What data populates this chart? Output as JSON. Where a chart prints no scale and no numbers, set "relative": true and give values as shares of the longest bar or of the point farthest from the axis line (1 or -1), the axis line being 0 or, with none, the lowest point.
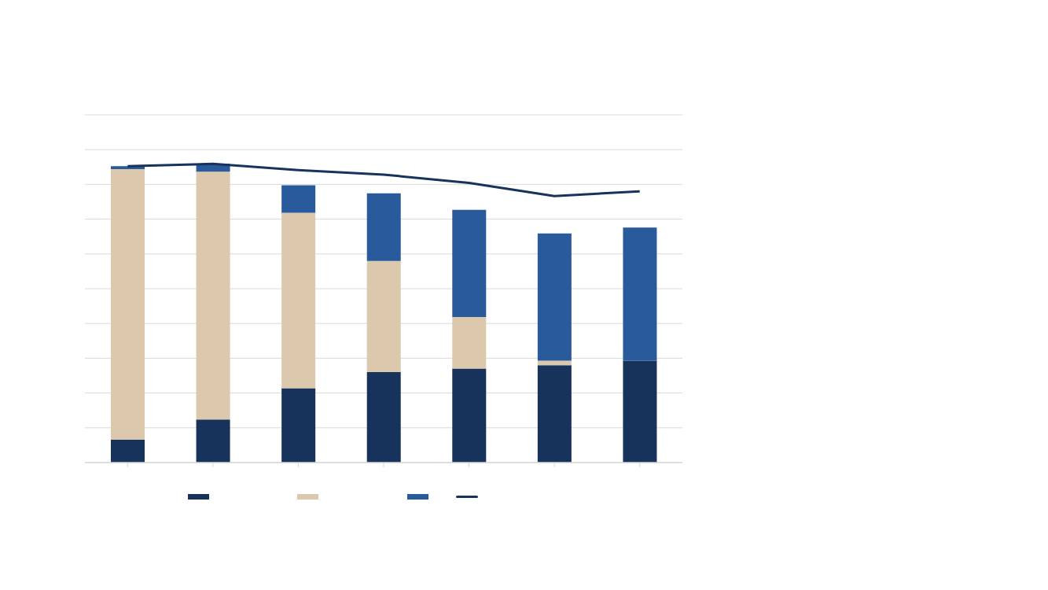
{
  "chart_data": [
    {
      "type": "bar",
      "relative": true,
      "stacked": true,
      "grid": "y",
      "categories": [
        null,
        null,
        null,
        null,
        null,
        null,
        null
      ],
      "series": [
        {
          "color": "#17335c",
          "values": [
            0.077,
            0.144,
            0.249,
            0.303,
            0.315,
            0.326,
            0.341
          ]
        },
        {
          "color": "#dcc8ad",
          "values": [
            0.905,
            0.83,
            0.587,
            0.372,
            0.172,
            0.015,
            0
          ]
        },
        {
          "color": "#285a9c",
          "values": [
            0.01,
            0.026,
            0.092,
            0.226,
            0.359,
            0.426,
            0.446
          ]
        }
      ]
    },
    {
      "type": "line",
      "relative": true,
      "categories": [
        null,
        null,
        null,
        null,
        null,
        null,
        null
      ],
      "series": [
        {
          "color": "#17335c",
          "values": [
            0.992,
            1,
            0.979,
            0.964,
            0.936,
            0.892,
            0.908
          ]
        }
      ]
    }
  ]
}
